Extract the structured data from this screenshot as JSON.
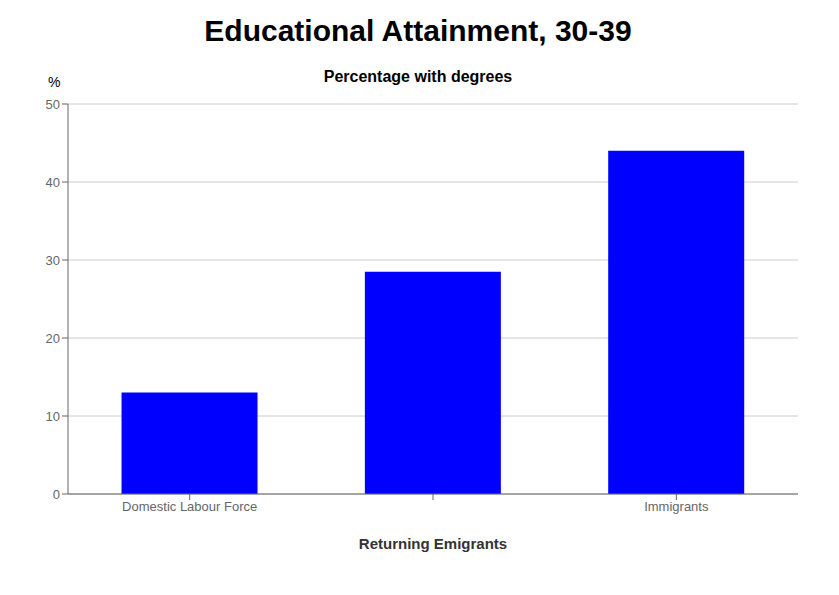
{
  "chart_data": {
    "type": "bar",
    "title": "Educational Attainment, 30-39",
    "subtitle": "Percentage with degrees",
    "xlabel": "Returning Emigrants",
    "ylabel": "%",
    "categories": [
      "Domestic Labour Force",
      null,
      "Immigrants"
    ],
    "values": [
      13,
      28.5,
      44
    ],
    "color": "#0000FF",
    "ylim": [
      0,
      50
    ],
    "yticks": [
      0,
      10,
      20,
      30,
      40,
      50
    ],
    "grid": true
  }
}
